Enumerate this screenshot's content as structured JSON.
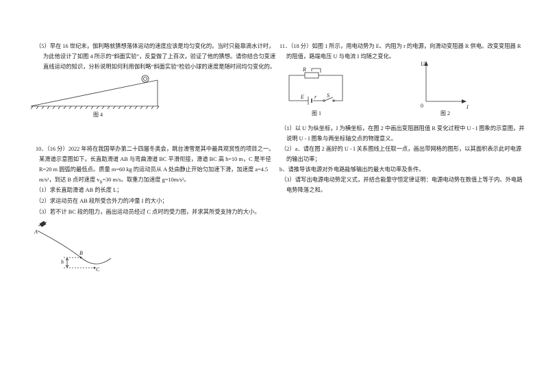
{
  "question5": {
    "lines": [
      "（5）早在 16 世纪末，伽利略就猜想落体运动的速度应该是均匀变化的。当时只能靠滴水计时，",
      "为此他设计了如图 4 所示的“斜面实验”，反复做了上百次，验证了他的猜想。请你结合匀变速",
      "直线运动的知识，分析说明如何利用伽利略“斜面实验”检验小球的速度是随时间均匀变化的。"
    ],
    "figure_caption": "图 4"
  },
  "question10": {
    "lines": [
      "10．（16 分）2022 年将在我国举办第二十四届冬奥会，跳台滑雪是其中最具观赏性的项目之一。",
      "某滑道示意图如下，长直助滑道 AB 与弯曲滑道 BC 平滑衔接，滑道 BC 高 h=10 m，C 是半径",
      "R=20 m 圆弧的最低点。质量 m=60 kg 的运动员从 A 处由静止开始匀加速下滑，加速度 a=4.5"
    ],
    "line_with_subscript": [
      "m/s²，到达 B 点时速度 v",
      "B",
      "=30 m/s。取重力加速度 g=10m/s²。"
    ],
    "parts": [
      "（1）求长直助滑道 AB 的长度 L；",
      "（2）求运动员在 AB 段所受合外力的冲量 I 的大小；",
      "（3）若不计 BC 段的阻力，画出运动员经过 C 点时的受力图，并求其所受支持力的大小。"
    ],
    "figure_labels": [
      "A",
      "B",
      "C",
      "h"
    ]
  },
  "question11": {
    "intro": [
      "11．（18 分）如图 1 所示，用电动势为 E、内阻为 r 的电源，向滑动变阻器 R 供电。改变变阻器 R",
      "的阻值，路端电压 U 与电流 I 均随之变化。"
    ],
    "figure1": {
      "labels": [
        "R",
        "E",
        "r",
        "S"
      ],
      "caption": "图 1"
    },
    "figure2": {
      "labels": [
        "U",
        "0",
        "I"
      ],
      "caption": "图 2"
    },
    "lines": [
      "（1）以 U 为纵坐标，I 为横坐标，在图 2 中画出变阻器阻值 R 变化过程中 U - I 图象的示意图，并",
      "说明 U - I 图象与两坐标轴交点的物理意义。",
      "（2）a．请在图 2 画好的 U - I 关系图线上任取一点，画出带网格的图形，以其面积表示此时电源",
      "的输出功率；",
      "b．请推导该电源对外电路能够输出的最大电功率及条件。",
      "（3）请写出电源电动势定义式，并结合能量守恒定律证明：电源电动势在数值上等于内、外电路",
      "电势降落之和。"
    ]
  }
}
